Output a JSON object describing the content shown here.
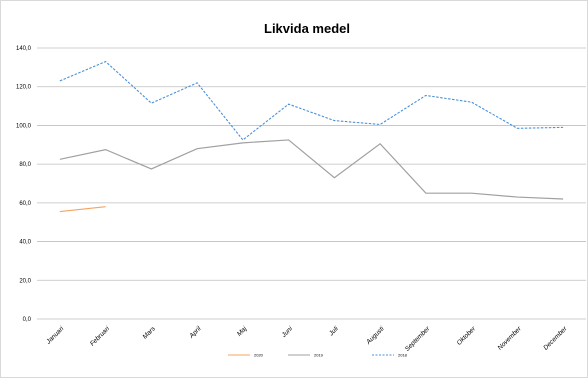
{
  "chart_data": {
    "type": "line",
    "title": "Likvida medel",
    "xlabel": "",
    "ylabel": "",
    "ylim": [
      0,
      140
    ],
    "yticks": [
      "0,0",
      "20,0",
      "40,0",
      "60,0",
      "80,0",
      "100,0",
      "120,0",
      "140,0"
    ],
    "categories": [
      "Januari",
      "Februari",
      "Mars",
      "April",
      "Maj",
      "Juni",
      "Juli",
      "Augusti",
      "September",
      "Oktober",
      "November",
      "December"
    ],
    "grid": true,
    "legend_position": "bottom",
    "series": [
      {
        "name": "2020",
        "color": "#f4a460",
        "dash": "solid",
        "values": [
          55.5,
          58.0,
          null,
          null,
          null,
          null,
          null,
          null,
          null,
          null,
          null,
          null
        ]
      },
      {
        "name": "2019",
        "color": "#a0a0a0",
        "dash": "solid",
        "values": [
          82.5,
          87.5,
          77.5,
          88.0,
          91.0,
          92.5,
          73.0,
          90.5,
          65.0,
          65.0,
          63.0,
          62.0
        ]
      },
      {
        "name": "2018",
        "color": "#4a90d9",
        "dash": "dashed",
        "values": [
          123.0,
          133.0,
          111.5,
          122.0,
          92.5,
          111.0,
          102.5,
          100.5,
          115.5,
          112.0,
          98.5,
          99.0
        ]
      }
    ]
  }
}
